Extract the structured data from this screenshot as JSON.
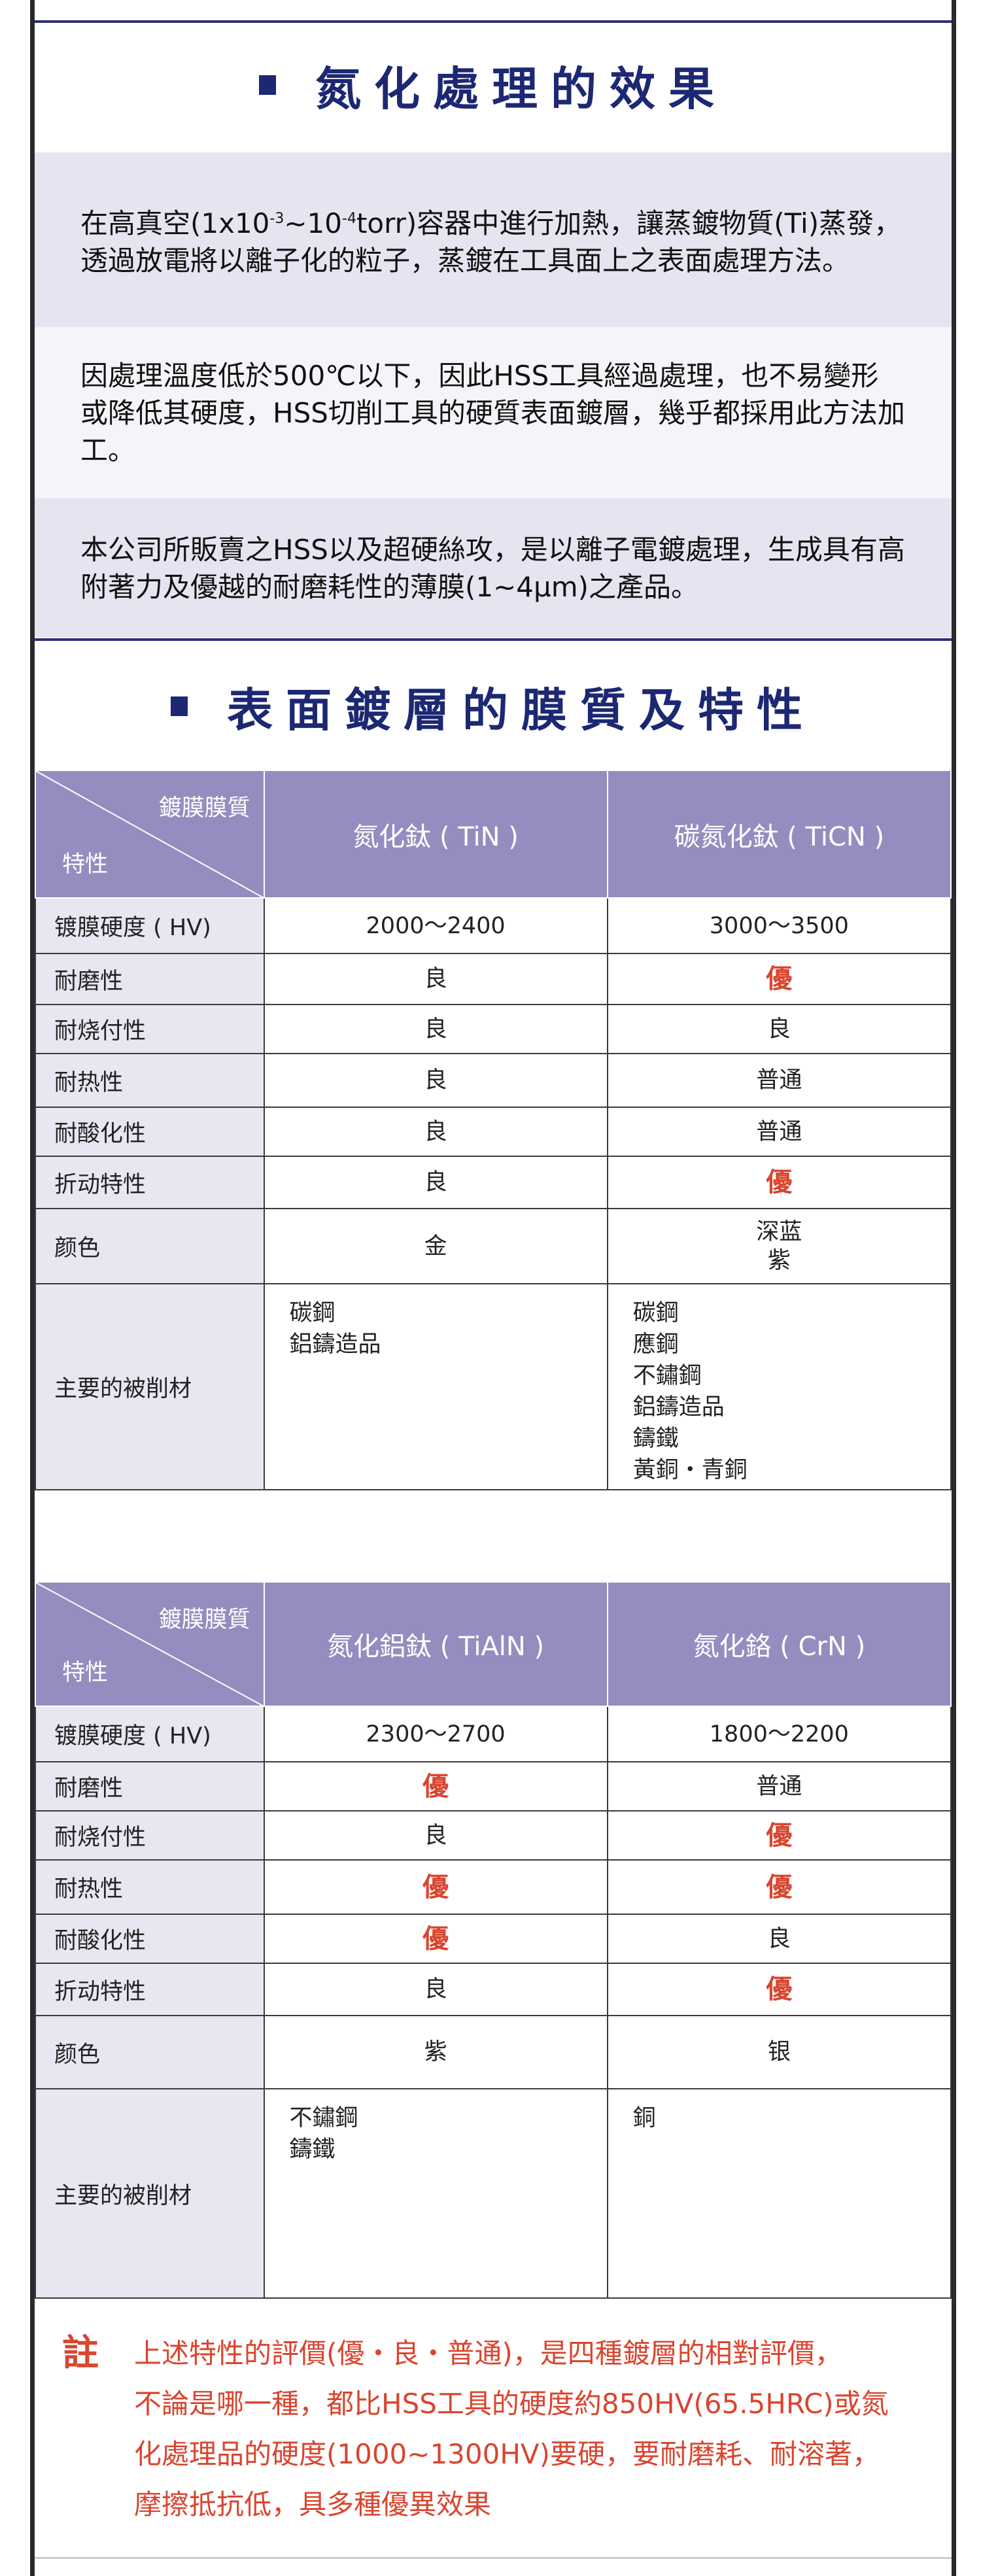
{
  "section1": {
    "title": "氮化處理的效果",
    "paragraphs": [
      {
        "pre": "在高真空(1x10",
        "sup1": "-3",
        "mid": "~10",
        "sup2": "-4",
        "post": "torr)容器中進行加熱，讓蒸鍍物質(Ti)蒸發，透過放電將以離子化的粒子，蒸鍍在工具面上之表面處理方法。"
      },
      {
        "text": "因處理溫度低於500℃以下，因此HSS工具經過處理，也不易變形或降低其硬度，HSS切削工具的硬質表面鍍層，幾乎都採用此方法加工。"
      },
      {
        "text": "本公司所販賣之HSS以及超硬絲攻，是以離子電鍍處理，生成具有高附著力及優越的耐磨耗性的薄膜(1~4μm)之產品。"
      }
    ]
  },
  "section2": {
    "title": "表面鍍層的膜質及特性"
  },
  "header": {
    "top_right": "鍍膜膜質",
    "bottom_left": "特性"
  },
  "row_labels": [
    "镀膜硬度 ( HV)",
    "耐磨性",
    "耐烧付性",
    "耐热性",
    "耐酸化性",
    "折动特性",
    "颜色",
    "主要的被削材"
  ],
  "table1": {
    "columns": [
      "氮化鈦 ( TiN )",
      "碳氮化鈦 ( TiCN )"
    ],
    "values": [
      [
        "2000〜2400",
        "3000〜3500"
      ],
      [
        "良",
        "優"
      ],
      [
        "良",
        "良"
      ],
      [
        "良",
        "普通"
      ],
      [
        "良",
        "普通"
      ],
      [
        "良",
        "優"
      ],
      [
        "金",
        "深蓝\n紫"
      ]
    ],
    "materials": [
      [
        "碳鋼",
        "鋁鑄造品"
      ],
      [
        "碳鋼",
        "應鋼",
        "不鏽鋼",
        "鋁鑄造品",
        "鑄鐵",
        "黃銅・青銅"
      ]
    ]
  },
  "table2": {
    "columns": [
      "氮化鋁鈦 ( TiAlN )",
      "氮化鉻 ( CrN )"
    ],
    "values": [
      [
        "2300〜2700",
        "1800〜2200"
      ],
      [
        "優",
        "普通"
      ],
      [
        "良",
        "優"
      ],
      [
        "優",
        "優"
      ],
      [
        "優",
        "良"
      ],
      [
        "良",
        "優"
      ],
      [
        "紫",
        "银"
      ]
    ],
    "materials": [
      [
        "不鏽鋼",
        "鑄鐵"
      ],
      [
        "銅"
      ]
    ]
  },
  "note": {
    "mark": "註",
    "lines": [
      "上述特性的評價(優・良・普通)，是四種鍍層的相對評價，",
      "不論是哪一種，都比HSS工具的硬度約850HV(65.5HRC)或氮",
      "化處理品的硬度(1000~1300HV)要硬，要耐磨耗、耐溶著，",
      "摩擦抵抗低，具多種優異效果"
    ]
  },
  "colors": {
    "navy": "#1c2872",
    "header_purple": "#958dbf",
    "highlight_red": "#d9452f",
    "label_bg": "#e8e6f1"
  }
}
